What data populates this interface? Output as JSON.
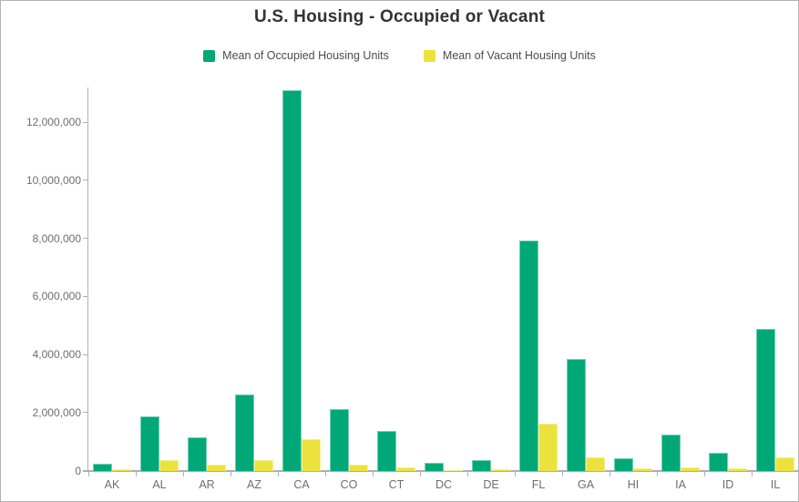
{
  "window": {
    "background": "#ffffff",
    "border_color": "#b4b4b4"
  },
  "chart_data": {
    "type": "bar",
    "title": "U.S. Housing - Occupied or Vacant",
    "categories": [
      "AK",
      "AL",
      "AR",
      "AZ",
      "CA",
      "CO",
      "CT",
      "DC",
      "DE",
      "FL",
      "GA",
      "HI",
      "IA",
      "ID",
      "IL"
    ],
    "series": [
      {
        "name": "Mean of Occupied Housing Units",
        "color": "#00a878",
        "values": [
          250000,
          1870000,
          1170000,
          2630000,
          13100000,
          2140000,
          1380000,
          280000,
          370000,
          7950000,
          3850000,
          430000,
          1260000,
          620000,
          4900000
        ]
      },
      {
        "name": "Mean of Vacant Housing Units",
        "color": "#ece23d",
        "values": [
          60000,
          370000,
          210000,
          390000,
          1100000,
          230000,
          130000,
          30000,
          70000,
          1620000,
          470000,
          80000,
          120000,
          80000,
          470000
        ]
      }
    ],
    "xlabel": "",
    "ylabel": "",
    "ylim": [
      0,
      12000000
    ],
    "y_ticks": [
      0,
      2000000,
      4000000,
      6000000,
      8000000,
      10000000,
      12000000
    ],
    "y_tick_labels": [
      "0",
      "2,000,000",
      "4,000,000",
      "6,000,000",
      "8,000,000",
      "10,000,000",
      "12,000,000"
    ],
    "grid": false,
    "legend_position": "top",
    "text_colors": {
      "title": "#333333",
      "axis": "#6e6e6e",
      "legend": "#4c4c4c"
    }
  }
}
